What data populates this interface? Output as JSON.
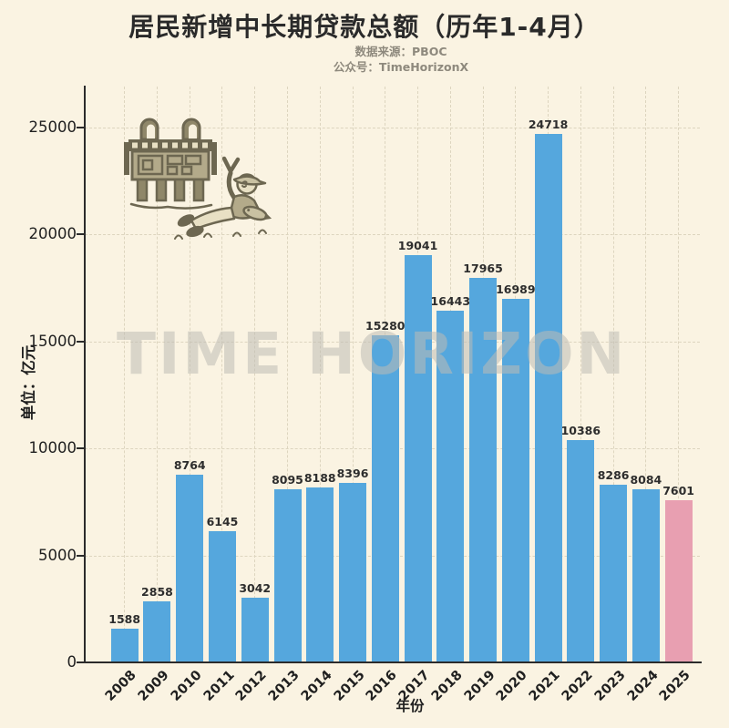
{
  "header": {
    "title": "居民新增中长期贷款总额（历年1-4月）",
    "source_line": "数据来源：PBOC",
    "account_line": "公众号：TimeHorizonX"
  },
  "watermark": {
    "text": "TIME HORIZON"
  },
  "illustration": {
    "name": "bronze-ding-vessel-and-reclining-man-with-fish"
  },
  "colors": {
    "background": "#faf3e2",
    "bar_default": "#55a7dd",
    "bar_highlight": "#e89fb1",
    "spine": "#2b2b2b",
    "gridline": "#ddd5bf"
  },
  "chart_data": {
    "type": "bar",
    "title": "居民新增中长期贷款总额（历年1-4月）",
    "xlabel": "年份",
    "ylabel": "单位：亿元",
    "categories": [
      "2008",
      "2009",
      "2010",
      "2011",
      "2012",
      "2013",
      "2014",
      "2015",
      "2016",
      "2017",
      "2018",
      "2019",
      "2020",
      "2021",
      "2022",
      "2023",
      "2024",
      "2025"
    ],
    "values": [
      1588,
      2858,
      8764,
      6145,
      3042,
      8095,
      8188,
      8396,
      15280,
      19041,
      16443,
      17965,
      16989,
      24718,
      10386,
      8286,
      8084,
      7601
    ],
    "highlight_index": 17,
    "yticks": [
      0,
      5000,
      10000,
      15000,
      20000,
      25000
    ],
    "ylim": [
      0,
      26900
    ],
    "grid": "dashed-both-axes",
    "legend": "none",
    "bar_labels_shown": true
  }
}
